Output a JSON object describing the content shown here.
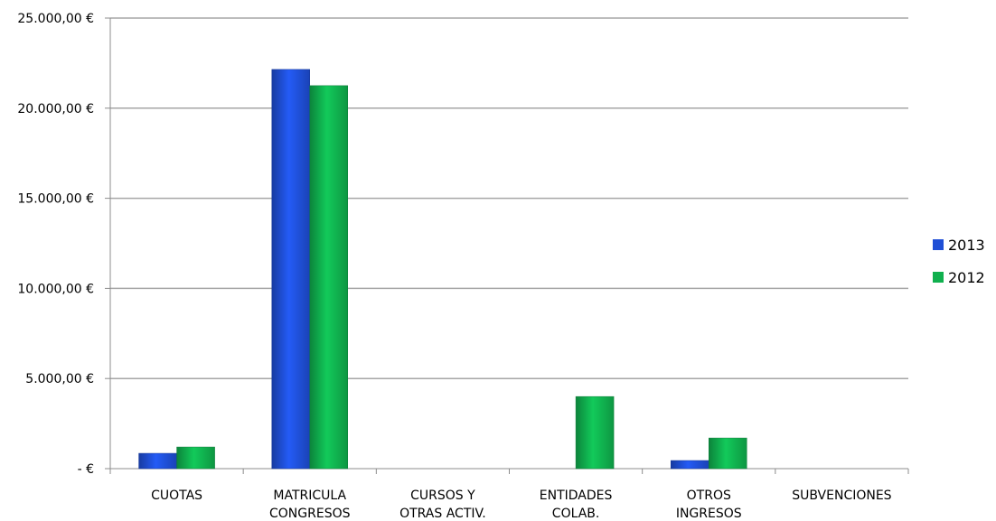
{
  "chart_data": {
    "type": "bar",
    "title": "",
    "xlabel": "",
    "ylabel": "",
    "categories": [
      [
        "CUOTAS"
      ],
      [
        "MATRICULA",
        "CONGRESOS"
      ],
      [
        "CURSOS Y",
        "OTRAS ACTIV."
      ],
      [
        "ENTIDADES",
        "COLAB."
      ],
      [
        "OTROS",
        "INGRESOS"
      ],
      [
        "SUBVENCIONES"
      ]
    ],
    "series": [
      {
        "name": "2013",
        "color": "#1f4fd6",
        "values": [
          850,
          22150,
          0,
          0,
          450,
          0
        ]
      },
      {
        "name": "2012",
        "color": "#10b04e",
        "values": [
          1200,
          21250,
          0,
          4000,
          1700,
          0
        ]
      }
    ],
    "ylim": [
      0,
      25000
    ],
    "y_ticks": [
      0,
      5000,
      10000,
      15000,
      20000,
      25000
    ],
    "y_tick_labels": [
      "-   €",
      "5.000,00 €",
      "10.000,00 €",
      "15.000,00 €",
      "20.000,00 €",
      "25.000,00 €"
    ],
    "grid": true,
    "legend_position": "right"
  }
}
